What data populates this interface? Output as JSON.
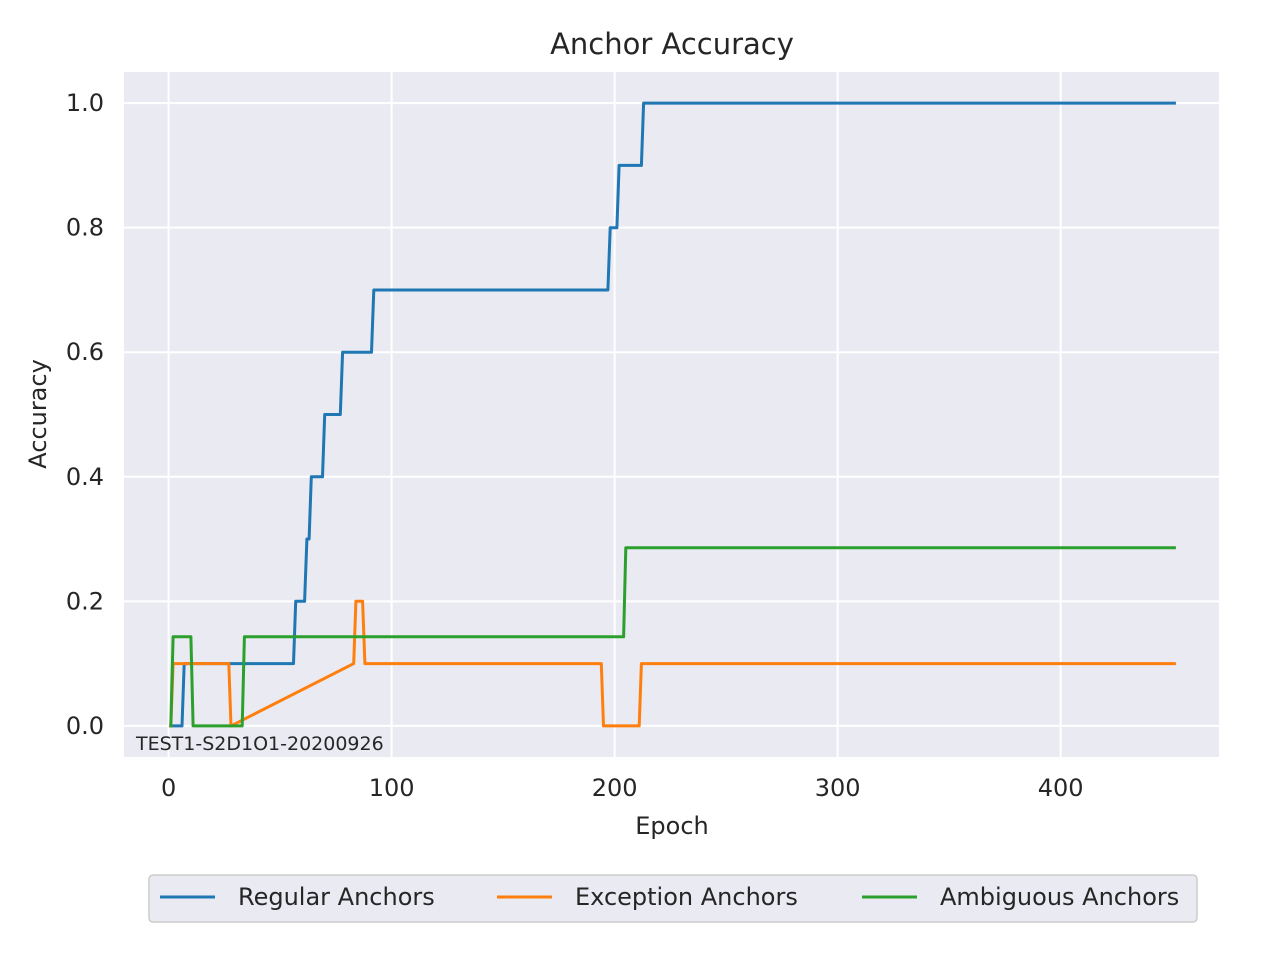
{
  "chart_data": {
    "type": "line",
    "title": "Anchor Accuracy",
    "xlabel": "Epoch",
    "ylabel": "Accuracy",
    "annotation": "TEST1-S2D1O1-20200926",
    "xlim": [
      -20,
      471
    ],
    "ylim": [
      -0.05,
      1.05
    ],
    "xticks": [
      0,
      100,
      200,
      300,
      400
    ],
    "xtick_labels": [
      "0",
      "100",
      "200",
      "300",
      "400"
    ],
    "yticks": [
      0.0,
      0.2,
      0.4,
      0.6,
      0.8,
      1.0
    ],
    "ytick_labels": [
      "0.0",
      "0.2",
      "0.4",
      "0.6",
      "0.8",
      "1.0"
    ],
    "grid": true,
    "legend_placement": "bottom-center",
    "background": "#eaeaf2",
    "series": [
      {
        "name": "Regular Anchors",
        "color": "#1f77b4",
        "x": [
          1,
          6,
          7,
          8,
          28,
          29,
          56,
          57,
          61,
          62,
          63,
          64,
          65,
          66,
          69,
          70,
          77,
          78,
          91,
          92,
          197,
          198,
          201,
          202,
          212,
          213,
          451
        ],
        "y": [
          0.0,
          0.0,
          0.1,
          0.1,
          0.1,
          0.1,
          0.1,
          0.2,
          0.2,
          0.3,
          0.3,
          0.4,
          0.4,
          0.4,
          0.4,
          0.5,
          0.5,
          0.6,
          0.6,
          0.7,
          0.7,
          0.8,
          0.8,
          0.9,
          0.9,
          1.0,
          1.0
        ]
      },
      {
        "name": "Exception Anchors",
        "color": "#ff7f0e",
        "x": [
          1,
          2,
          27,
          28,
          83,
          84,
          87,
          88,
          194,
          195,
          211,
          212,
          451
        ],
        "y": [
          0.0,
          0.1,
          0.1,
          0.0,
          0.1,
          0.2,
          0.2,
          0.1,
          0.1,
          0.0,
          0.0,
          0.1,
          0.1
        ]
      },
      {
        "name": "Ambiguous Anchors",
        "color": "#2ca02c",
        "x": [
          1,
          2,
          10,
          11,
          33,
          34,
          204,
          205,
          451
        ],
        "y": [
          0.0,
          0.143,
          0.143,
          0.0,
          0.0,
          0.143,
          0.143,
          0.286,
          0.286
        ]
      }
    ]
  }
}
